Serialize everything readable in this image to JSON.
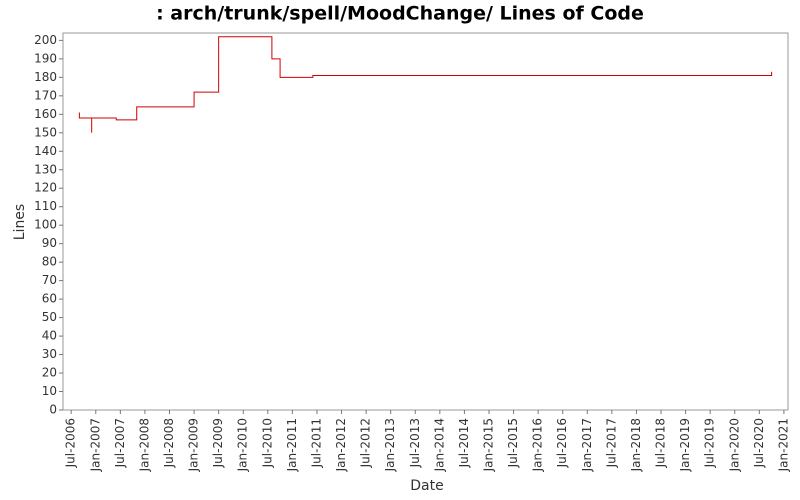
{
  "chart_data": {
    "type": "line",
    "step": true,
    "title": ": arch/trunk/spell/MoodChange/ Lines of Code",
    "x_label": "Date",
    "y_label": "Lines",
    "x": [
      "2006-09",
      "2006-09",
      "2006-12",
      "2006-12",
      "2007-06",
      "2007-11",
      "2009-01",
      "2009-07",
      "2009-07",
      "2010-08",
      "2010-10",
      "2011-06",
      "2020-10"
    ],
    "series": [
      {
        "name": "Lines",
        "color": "#d00000",
        "values": [
          161,
          158,
          150,
          158,
          157,
          164,
          172,
          192,
          202,
          190,
          180,
          181,
          183
        ]
      }
    ],
    "xlim": [
      "2006-05",
      "2021-02"
    ],
    "xticks": [
      {
        "value": "2006-07",
        "label": "Jul-2006"
      },
      {
        "value": "2007-01",
        "label": "Jan-2007"
      },
      {
        "value": "2007-07",
        "label": "Jul-2007"
      },
      {
        "value": "2008-01",
        "label": "Jan-2008"
      },
      {
        "value": "2008-07",
        "label": "Jul-2008"
      },
      {
        "value": "2009-01",
        "label": "Jan-2009"
      },
      {
        "value": "2009-07",
        "label": "Jul-2009"
      },
      {
        "value": "2010-01",
        "label": "Jan-2010"
      },
      {
        "value": "2010-07",
        "label": "Jul-2010"
      },
      {
        "value": "2011-01",
        "label": "Jan-2011"
      },
      {
        "value": "2011-07",
        "label": "Jul-2011"
      },
      {
        "value": "2012-01",
        "label": "Jan-2012"
      },
      {
        "value": "2012-07",
        "label": "Jul-2012"
      },
      {
        "value": "2013-01",
        "label": "Jan-2013"
      },
      {
        "value": "2013-07",
        "label": "Jul-2013"
      },
      {
        "value": "2014-01",
        "label": "Jan-2014"
      },
      {
        "value": "2014-07",
        "label": "Jul-2014"
      },
      {
        "value": "2015-01",
        "label": "Jan-2015"
      },
      {
        "value": "2015-07",
        "label": "Jul-2015"
      },
      {
        "value": "2016-01",
        "label": "Jan-2016"
      },
      {
        "value": "2016-07",
        "label": "Jul-2016"
      },
      {
        "value": "2017-01",
        "label": "Jan-2017"
      },
      {
        "value": "2017-07",
        "label": "Jul-2017"
      },
      {
        "value": "2018-01",
        "label": "Jan-2018"
      },
      {
        "value": "2018-07",
        "label": "Jul-2018"
      },
      {
        "value": "2019-01",
        "label": "Jan-2019"
      },
      {
        "value": "2019-07",
        "label": "Jul-2019"
      },
      {
        "value": "2020-01",
        "label": "Jan-2020"
      },
      {
        "value": "2020-07",
        "label": "Jul-2020"
      },
      {
        "value": "2021-01",
        "label": "Jan-2021"
      }
    ],
    "ylim": [
      0,
      204
    ],
    "yticks": [
      0,
      10,
      20,
      30,
      40,
      50,
      60,
      70,
      80,
      90,
      100,
      110,
      120,
      130,
      140,
      150,
      160,
      170,
      180,
      190,
      200
    ],
    "grid": false
  }
}
